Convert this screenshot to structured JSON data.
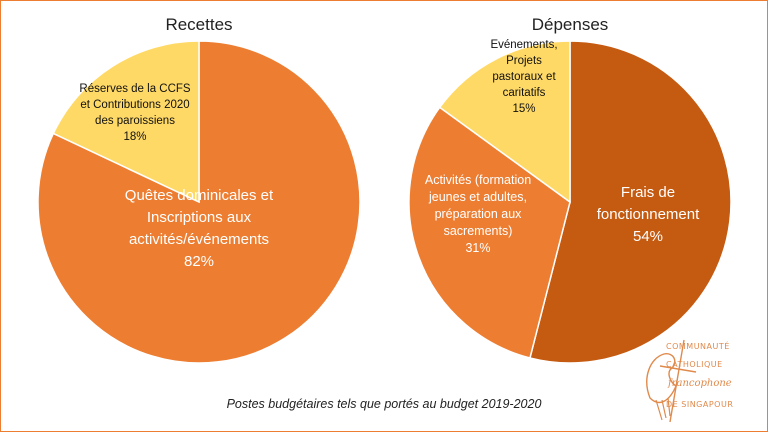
{
  "chart_data": [
    {
      "type": "pie",
      "title": "Recettes",
      "slices": [
        {
          "label": [
            "Quêtes dominicales et",
            "Inscriptions aux",
            "activités/événements"
          ],
          "value": 82,
          "value_label": "82%",
          "color": "#ED7D31"
        },
        {
          "label": [
            "Réserves de la CCFS",
            "et Contributions 2020",
            "des paroissiens"
          ],
          "value": 18,
          "value_label": "18%",
          "color": "#FFD966"
        }
      ]
    },
    {
      "type": "pie",
      "title": "Dépenses",
      "slices": [
        {
          "label": [
            "Frais de",
            "fonctionnement"
          ],
          "value": 54,
          "value_label": "54%",
          "color": "#C55A11"
        },
        {
          "label": [
            "Activités (formation",
            "jeunes et adultes,",
            "préparation aux",
            "sacrements)"
          ],
          "value": 31,
          "value_label": "31%",
          "color": "#ED7D31"
        },
        {
          "label": [
            "Evénements,",
            "Projets",
            "pastoraux et",
            "caritatifs"
          ],
          "value": 15,
          "value_label": "15%",
          "color": "#FFD966"
        }
      ]
    }
  ],
  "caption": "Postes budgétaires tels que portés au budget 2019-2020",
  "logo": {
    "line1": "COMMUNAUTÉ",
    "line2": "CATHOLIQUE",
    "line3": "francophone",
    "line4": "DE SINGAPOUR",
    "color": "#E08A4C"
  }
}
